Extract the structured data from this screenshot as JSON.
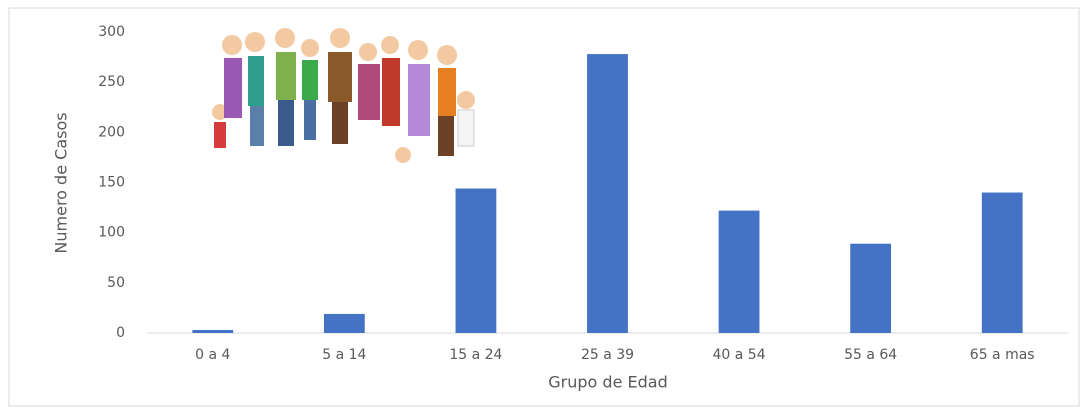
{
  "chart_data": {
    "type": "bar",
    "x_label": "Grupo de Edad",
    "y_label": "Numero de Casos",
    "categories": [
      "0 a 4",
      "5 a 14",
      "15 a 24",
      "25 a 39",
      "40 a 54",
      "55 a 64",
      "65 a mas"
    ],
    "values": [
      3,
      19,
      144,
      278,
      122,
      89,
      140
    ],
    "color": "#4472c4",
    "ylim": [
      0,
      300
    ],
    "yticks": [
      0,
      50,
      100,
      150,
      200,
      250,
      300
    ],
    "grid": false
  }
}
